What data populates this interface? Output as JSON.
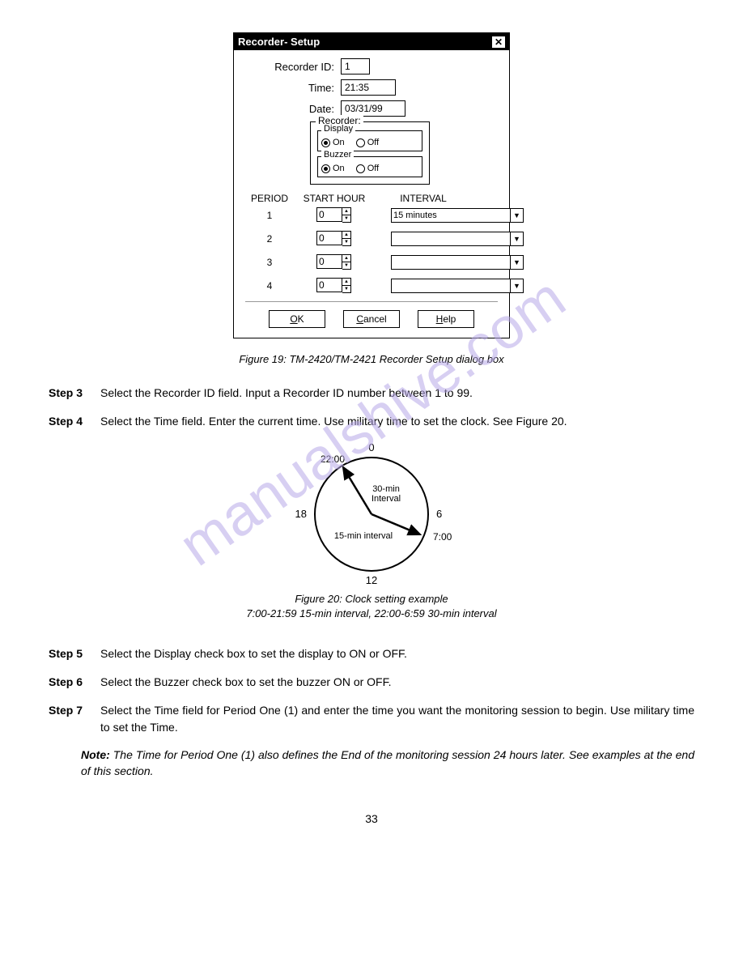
{
  "dialog": {
    "title": "Recorder- Setup",
    "recorder_id": {
      "label": "Recorder ID:",
      "value": "1"
    },
    "time": {
      "label": "Time:",
      "value": "21:35"
    },
    "date": {
      "label": "Date:",
      "value": "03/31/99"
    },
    "recorder_group": {
      "legend": "Recorder:"
    },
    "display_group": {
      "legend": "Display",
      "selected": "On",
      "on": "On",
      "off": "Off"
    },
    "buzzer_group": {
      "legend": "Buzzer",
      "selected": "On",
      "on": "On",
      "off": "Off"
    },
    "columns": {
      "period": "PERIOD",
      "start": "START HOUR",
      "interval": "INTERVAL"
    },
    "periods": [
      {
        "num": "1",
        "start": "0",
        "interval": "15 minutes"
      },
      {
        "num": "2",
        "start": "0",
        "interval": ""
      },
      {
        "num": "3",
        "start": "0",
        "interval": ""
      },
      {
        "num": "4",
        "start": "0",
        "interval": ""
      }
    ],
    "buttons": {
      "ok": "OK",
      "cancel": "Cancel",
      "help": "Help"
    }
  },
  "figure19_caption": "Figure 19: TM-2420/TM-2421 Recorder Setup dialog box",
  "steps": {
    "s3": {
      "label": "Step 3",
      "text": "Select the Recorder ID field. Input a Recorder ID number between 1 to 99."
    },
    "s4": {
      "label": "Step 4",
      "text": "Select the Time field.  Enter the current time.  Use military time to set the clock.  See Figure 20."
    },
    "s5": {
      "label": "Step 5",
      "text": "Select the Display check box to set the display to ON or OFF."
    },
    "s6": {
      "label": "Step 6",
      "text": "Select the Buzzer check box to set the buzzer ON or OFF."
    },
    "s7": {
      "label": "Step 7",
      "text": "Select the Time field for Period One (1) and enter the time you want the monitoring session to begin.  Use military time to set the Time."
    }
  },
  "clock": {
    "labels": {
      "t0": "0",
      "t6": "6",
      "t12": "12",
      "t18": "18"
    },
    "time_a": "22:00",
    "time_b": "7:00",
    "text_a": "30-min Interval",
    "text_b": "15-min interval",
    "caption_line1": "Figure 20: Clock setting example",
    "caption_line2": "7:00-21:59  15-min interval, 22:00-6:59  30-min interval"
  },
  "note": {
    "prefix": "Note:",
    "text": "The Time for Period One (1) also defines the End of the monitoring session 24 hours later.  See examples at the end of this section."
  },
  "page_number": "33",
  "watermark": "manualshive.com",
  "colors": {
    "watermark": "#b8a8e8"
  }
}
